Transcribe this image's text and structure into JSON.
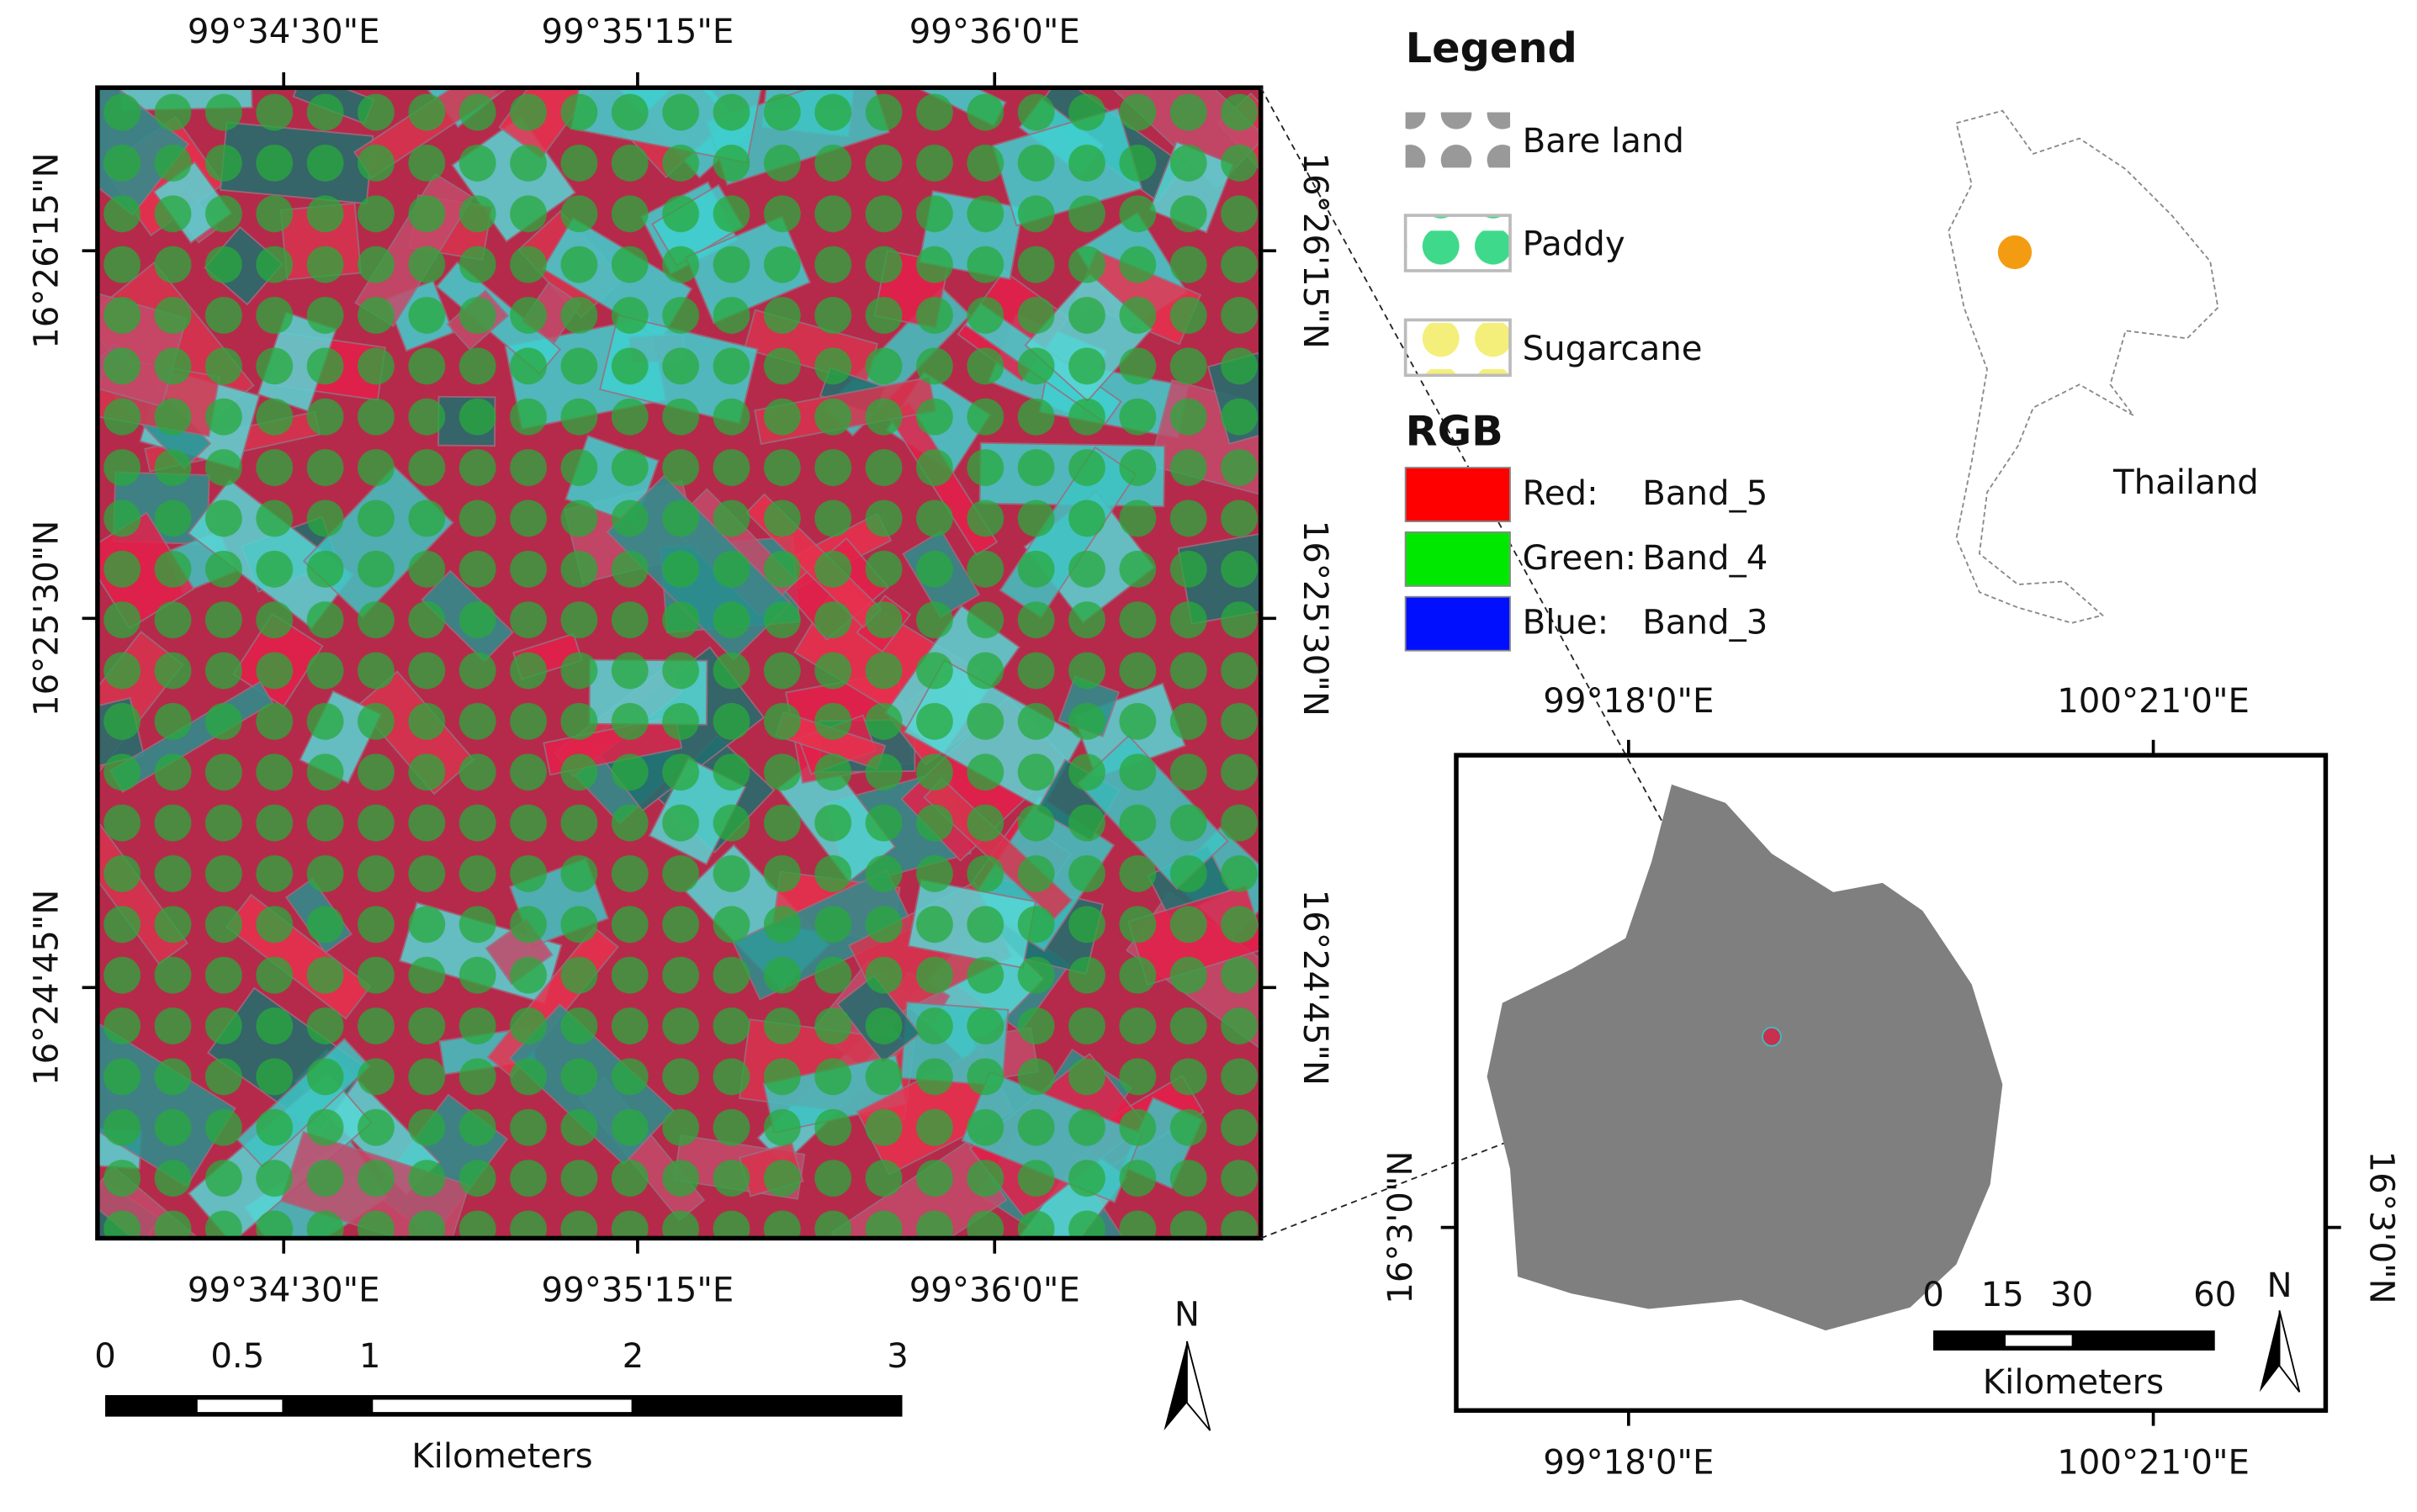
{
  "main_map": {
    "top_lon_labels": [
      "99°34'30\"E",
      "99°35'15\"E",
      "99°36'0\"E"
    ],
    "bottom_lon_labels": [
      "99°34'30\"E",
      "99°35'15\"E",
      "99°36'0\"E"
    ],
    "left_lat_labels": [
      "16°26'15\"N",
      "16°25'30\"N",
      "16°24'45\"N"
    ],
    "right_lat_labels": [
      "16°26'15\"N",
      "16°25'30\"N",
      "16°24'45\"N"
    ],
    "scale_bar": {
      "labels": [
        "0",
        "0.5",
        "1",
        "2",
        "3"
      ],
      "unit": "Kilometers"
    },
    "north": "N"
  },
  "legend": {
    "title": "Legend",
    "items": [
      "Bare land",
      "Paddy",
      "Sugarcane"
    ]
  },
  "rgb": {
    "title": "RGB",
    "items": [
      {
        "channel": "Red:",
        "band": "Band_5"
      },
      {
        "channel": "Green:",
        "band": "Band_4"
      },
      {
        "channel": "Blue:",
        "band": "Band_3"
      }
    ]
  },
  "locator": {
    "label": "Thailand"
  },
  "inset_map": {
    "top_lon_labels": [
      "99°18'0\"E",
      "100°21'0\"E"
    ],
    "bottom_lon_labels": [
      "99°18'0\"E",
      "100°21'0\"E"
    ],
    "left_lat_labels": [
      "16°3'0\"N"
    ],
    "right_lat_labels": [
      "16°3'0\"N"
    ],
    "scale_bar": {
      "labels": [
        "0",
        "15",
        "30",
        "60"
      ],
      "unit": "Kilometers"
    },
    "north": "N"
  }
}
